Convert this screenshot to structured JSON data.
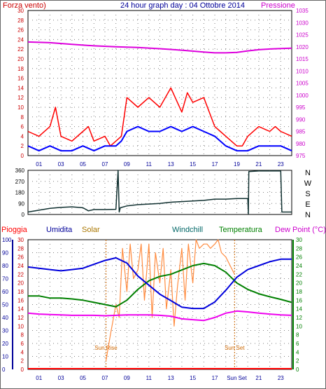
{
  "header": {
    "left_label": "Forza vento)",
    "title": "24 hour graph day : 04 Ottobre 2014",
    "right_label": "Pressione"
  },
  "colors": {
    "wind": "#ff0000",
    "wind_avg": "#0000ff",
    "pressure": "#dd00dd",
    "direction": "#103030",
    "humidity": "#0000dd",
    "temperature": "#008000",
    "dewpoint": "#ee00ee",
    "solar": "#ff8c40",
    "rain": "#ff0000",
    "sun_marker": "#cc6600",
    "grid": "#808080",
    "tick_left": "#cc0000",
    "tick_right": "#cc00cc",
    "tick_hum": "#000099",
    "tick_temp": "#008000"
  },
  "chart_data": [
    {
      "type": "line",
      "name": "wind-pressure",
      "left_axis": {
        "ylim": [
          0,
          30
        ],
        "ticks": [
          "0",
          "2",
          "4",
          "6",
          "8",
          "10",
          "12",
          "14",
          "16",
          "18",
          "20",
          "22",
          "24",
          "26",
          "28",
          "30"
        ]
      },
      "right_axis": {
        "ylim": [
          975,
          1035
        ],
        "ticks": [
          "975",
          "980",
          "985",
          "990",
          "995",
          "1000",
          "1005",
          "1010",
          "1015",
          "1020",
          "1025",
          "1030",
          "1035"
        ]
      },
      "x_ticks": [
        "01",
        "03",
        "05",
        "07",
        "09",
        "11",
        "13",
        "15",
        "17",
        "19",
        "21",
        "23"
      ],
      "grid": true,
      "series": [
        {
          "key": "gust",
          "x": [
            0,
            1,
            2,
            2.5,
            3,
            4,
            5,
            5.5,
            6,
            7,
            7.5,
            8,
            8.5,
            9,
            10,
            11,
            12,
            13,
            14,
            14.5,
            15,
            16,
            17,
            17.5,
            18,
            19,
            19.5,
            20,
            21,
            22,
            22.5,
            23,
            24
          ],
          "values": [
            5,
            4,
            6,
            10,
            4,
            3,
            5,
            6,
            3,
            4,
            2,
            3,
            4,
            12,
            10,
            12,
            10,
            14,
            9,
            13,
            11,
            12,
            6,
            5,
            4,
            2,
            2,
            4,
            6,
            5,
            6,
            5,
            4
          ]
        },
        {
          "key": "avg",
          "x": [
            0,
            1,
            2,
            3,
            4,
            5,
            6,
            7,
            8,
            8.5,
            9,
            10,
            11,
            12,
            13,
            14,
            15,
            16,
            17,
            18,
            19,
            20,
            21,
            22,
            23,
            24
          ],
          "values": [
            2,
            1,
            2,
            1,
            1,
            2,
            1,
            2,
            2,
            3,
            5,
            6,
            5,
            5,
            6,
            5,
            6,
            5,
            4,
            2,
            1,
            1,
            2,
            2,
            2,
            1
          ]
        },
        {
          "key": "pressure",
          "x": [
            0,
            2,
            4,
            6,
            8,
            10,
            12,
            14,
            16,
            17,
            18,
            19,
            20,
            21,
            22,
            23,
            24
          ],
          "values": [
            1022,
            1021.7,
            1021,
            1020.4,
            1020,
            1019.7,
            1019.2,
            1018.6,
            1017.8,
            1017.5,
            1017.5,
            1017.7,
            1018.3,
            1018.8,
            1019.1,
            1019.3,
            1019.4
          ]
        }
      ]
    },
    {
      "type": "line",
      "name": "wind-direction",
      "left_axis": {
        "ylim": [
          0,
          360
        ],
        "ticks": [
          "0",
          "90",
          "180",
          "270",
          "360"
        ]
      },
      "right_labels": [
        "N",
        "W",
        "S",
        "E",
        "N"
      ],
      "series": [
        {
          "key": "direction",
          "x": [
            0,
            1,
            2,
            3,
            4,
            5,
            5.5,
            6,
            7,
            8,
            8.2,
            8.3,
            8.4,
            9,
            10,
            11,
            12,
            13,
            14,
            15,
            16,
            17,
            18,
            19,
            20,
            20.05,
            20.1,
            21,
            22,
            23,
            23.1,
            24
          ],
          "values": [
            20,
            35,
            50,
            58,
            62,
            55,
            30,
            40,
            40,
            42,
            360,
            20,
            55,
            70,
            80,
            85,
            90,
            100,
            105,
            110,
            115,
            125,
            125,
            130,
            130,
            5,
            350,
            355,
            355,
            355,
            20,
            20
          ]
        }
      ]
    },
    {
      "type": "line",
      "name": "humidity-temperature",
      "legend": [
        "Pioggia",
        "Umidita",
        "Solar",
        "Windchill",
        "Temperatura",
        "Dew Point (°C)"
      ],
      "left_axis": {
        "ylim": [
          0,
          100
        ],
        "ticks": [
          "0",
          "10",
          "20",
          "30",
          "40",
          "50",
          "60",
          "70",
          "80",
          "90",
          "100"
        ]
      },
      "solar_axis": {
        "ylim": [
          0,
          30
        ],
        "ticks": [
          "0",
          "2",
          "4",
          "6",
          "8",
          "10",
          "12",
          "14",
          "16",
          "18",
          "20",
          "22",
          "24",
          "26",
          "28",
          "30"
        ]
      },
      "right_axis": {
        "ylim": [
          0,
          30
        ],
        "ticks": [
          "0",
          "2",
          "4",
          "6",
          "8",
          "10",
          "12",
          "14",
          "16",
          "18",
          "20",
          "22",
          "24",
          "26",
          "28",
          "30"
        ]
      },
      "x_ticks": [
        "01",
        "03",
        "05",
        "07",
        "09",
        "11",
        "13",
        "15",
        "17",
        "Sun Set",
        "21",
        "23"
      ],
      "annotations": [
        {
          "label": "Sun Rise",
          "x": 7.1
        },
        {
          "label": "Sun Set",
          "x": 18.8
        }
      ],
      "series": [
        {
          "key": "humidity",
          "x": [
            0,
            1,
            2,
            3,
            4,
            5,
            6,
            7,
            8,
            9,
            10,
            11,
            12,
            13,
            14,
            15,
            16,
            17,
            18,
            19,
            20,
            21,
            22,
            23,
            24
          ],
          "values": [
            79,
            78,
            77,
            76,
            77,
            78,
            81,
            84,
            86,
            82,
            72,
            65,
            58,
            53,
            48,
            47,
            47,
            52,
            61,
            71,
            77,
            80,
            83,
            85,
            85
          ]
        },
        {
          "key": "temperature",
          "x": [
            0,
            1,
            2,
            3,
            4,
            5,
            6,
            7,
            8,
            9,
            10,
            11,
            12,
            13,
            14,
            15,
            16,
            17,
            18,
            19,
            20,
            21,
            22,
            23,
            24
          ],
          "values": [
            17,
            17,
            16.5,
            16.5,
            16.3,
            16,
            15.5,
            15,
            14.5,
            16,
            18.5,
            20.5,
            21.5,
            22,
            23,
            24,
            24.5,
            24,
            22.5,
            20,
            18.5,
            17.5,
            16.8,
            16.2,
            15.5
          ]
        },
        {
          "key": "dewpoint",
          "x": [
            0,
            1,
            2,
            3,
            4,
            5,
            6,
            7,
            8,
            9,
            10,
            11,
            12,
            13,
            14,
            15,
            16,
            17,
            18,
            19,
            20,
            21,
            22,
            23,
            24
          ],
          "values": [
            13,
            12.8,
            12.7,
            12.6,
            12.5,
            12.5,
            12.5,
            12.4,
            12.5,
            12.6,
            12.6,
            12.6,
            12.5,
            12.3,
            11.7,
            11.5,
            11.3,
            12,
            13,
            13.5,
            13.3,
            13,
            12.8,
            12.6,
            12.5
          ]
        },
        {
          "key": "solar",
          "x": [
            7.1,
            7.5,
            8,
            8.3,
            8.6,
            9,
            9.3,
            9.6,
            10,
            10.3,
            10.6,
            11,
            11.3,
            11.6,
            12,
            12.3,
            12.6,
            13,
            13.3,
            13.6,
            14,
            14.3,
            14.6,
            15,
            15.3,
            15.6,
            16,
            16.3,
            16.6,
            17,
            17.3,
            17.6,
            18,
            18.4,
            18.8
          ],
          "values": [
            2,
            8,
            15,
            12,
            28,
            18,
            29,
            21,
            23,
            29,
            16,
            29,
            12,
            27,
            20,
            28,
            14,
            23,
            10,
            19,
            28,
            16,
            29,
            20,
            30,
            28,
            29,
            29,
            28,
            29,
            30,
            27,
            26,
            24,
            22
          ]
        }
      ]
    }
  ]
}
